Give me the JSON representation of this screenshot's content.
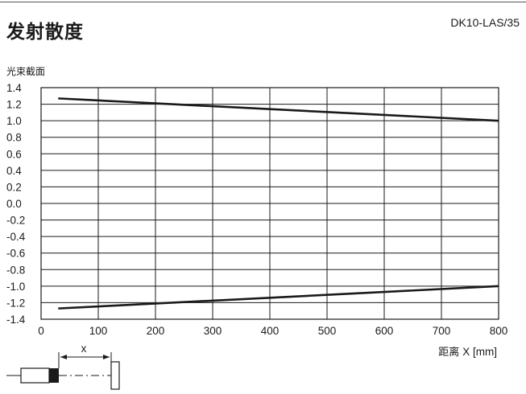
{
  "header": {
    "title": "发射散度",
    "model": "DK10-LAS/35"
  },
  "chart_data": {
    "type": "line",
    "ylabel": "光束截面",
    "xlabel_cn": "距离",
    "xlabel_en": "X [mm]",
    "xlim": [
      0,
      800
    ],
    "ylim": [
      -1.4,
      1.4
    ],
    "x_ticks": [
      "0",
      "100",
      "200",
      "300",
      "400",
      "500",
      "600",
      "700",
      "800"
    ],
    "y_ticks": [
      "1.4",
      "1.2",
      "1.0",
      "0.8",
      "0.6",
      "0.4",
      "0.2",
      "0.0",
      "-0.2",
      "-0.4",
      "-0.6",
      "-0.8",
      "-1.0",
      "-1.2",
      "-1.4"
    ],
    "grid": true,
    "series": [
      {
        "x": [
          30,
          800
        ],
        "y": [
          1.27,
          1.0
        ]
      },
      {
        "x": [
          30,
          800
        ],
        "y": [
          -1.27,
          -1.0
        ]
      }
    ]
  },
  "diagram": {
    "distance_label": "x"
  }
}
